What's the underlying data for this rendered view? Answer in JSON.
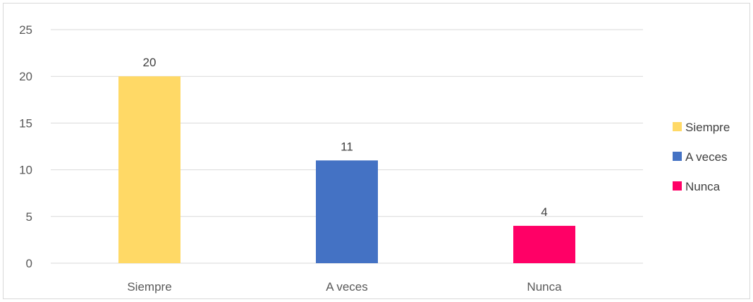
{
  "chart_data": {
    "type": "bar",
    "categories": [
      "Siempre",
      "A veces",
      "Nunca"
    ],
    "values": [
      20,
      11,
      4
    ],
    "colors": [
      "#FFD966",
      "#4472C4",
      "#FF0066"
    ],
    "ylim": [
      0,
      25
    ],
    "yticks": [
      0,
      5,
      10,
      15,
      20,
      25
    ],
    "grid": true,
    "data_labels": true,
    "legend": {
      "position": "right",
      "entries": [
        "Siempre",
        "A veces",
        "Nunca"
      ]
    },
    "title": "",
    "xlabel": "",
    "ylabel": ""
  }
}
